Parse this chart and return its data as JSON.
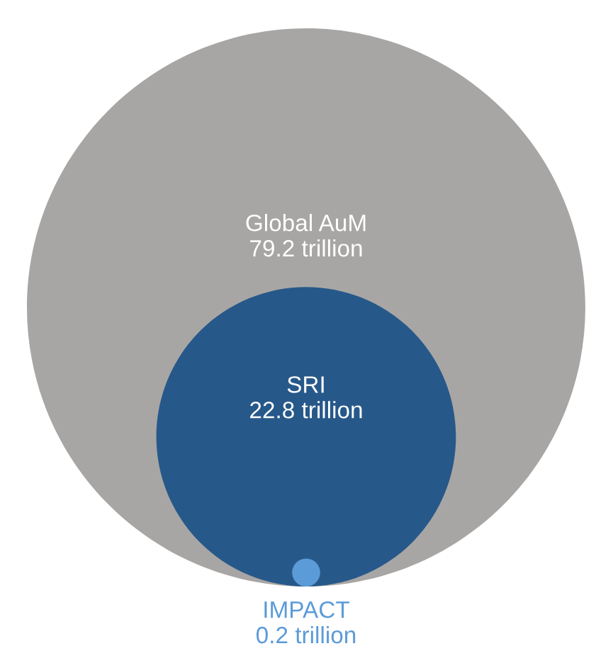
{
  "chart_data": {
    "type": "other",
    "categories": [
      "Global AuM",
      "SRI",
      "IMPACT"
    ],
    "values": [
      79.2,
      22.8,
      0.2
    ],
    "value_labels": [
      "79.2 trillion",
      "22.8 trillion",
      "0.2 trillion"
    ],
    "colors": [
      "#a8a6a4",
      "#27588a",
      "#5b9bd8"
    ]
  }
}
